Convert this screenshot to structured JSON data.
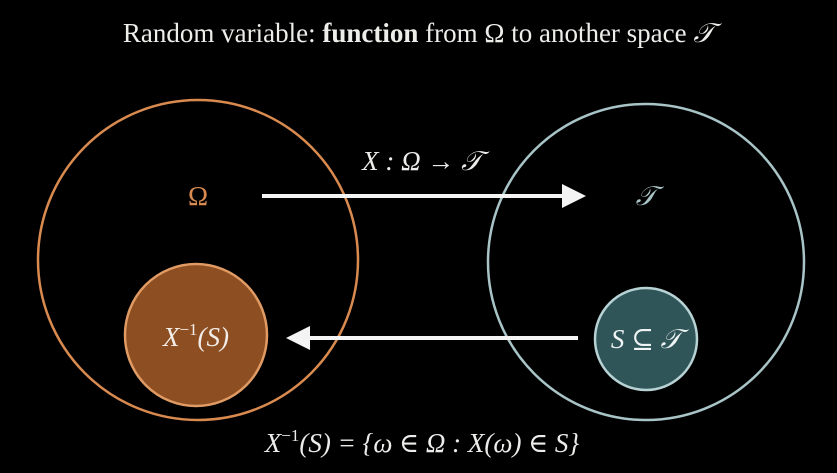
{
  "title": {
    "prefix": "Random variable: ",
    "bold": "function",
    "middle": " from Ω to another space ",
    "symbol": "𝒯"
  },
  "left_set": {
    "label": "Ω",
    "color": "#d98a4f"
  },
  "preimage": {
    "label": "X⁻¹(S)",
    "base": "X",
    "superscript": "−1",
    "tail": "(S)",
    "fill": "#8d4e22",
    "stroke": "#e09a63"
  },
  "right_set": {
    "label": "𝒯",
    "color": "#a9c4c7"
  },
  "subset": {
    "label": "S ⊆ 𝒯",
    "fill": "#2f5558",
    "stroke": "#b7d2d4"
  },
  "forward_map": {
    "label": "X : Ω → 𝒯"
  },
  "formula": {
    "base": "X",
    "superscript": "−1",
    "tail": "(S) = {ω ∈ Ω : X(ω) ∈ S}"
  },
  "colors": {
    "background": "#000000",
    "text": "#ececea",
    "arrow": "#f4f4f4"
  }
}
